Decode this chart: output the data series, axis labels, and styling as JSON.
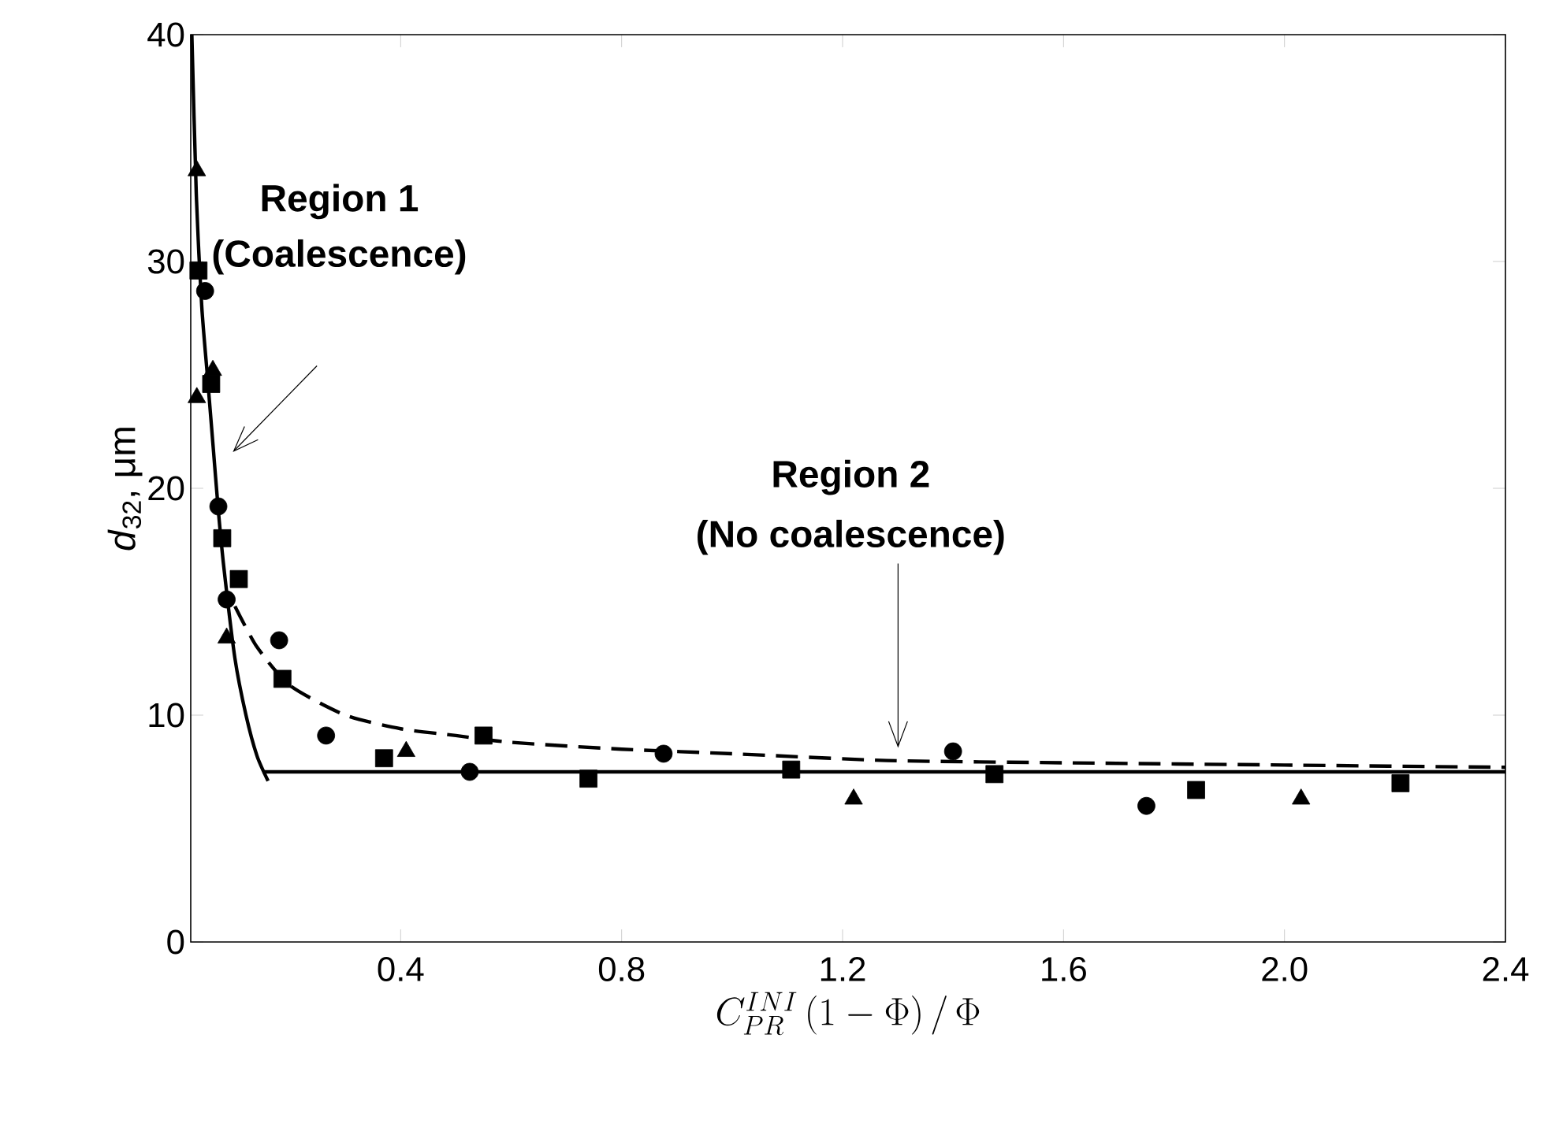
{
  "chart_data": {
    "type": "scatter",
    "xlabel": "C_{PR}^{INI}\\,(1-\\Phi)\\,/\\,\\Phi",
    "ylabel": "*d*$_{32}$, μm",
    "xlim": [
      0.02,
      2.4
    ],
    "ylim": [
      0,
      40
    ],
    "xticks": [
      0.4,
      0.8,
      1.2,
      1.6,
      {
        "value": 2.0,
        "label": "2.0"
      },
      2.4
    ],
    "yticks": [
      0,
      10,
      20,
      30,
      40
    ],
    "series": [
      {
        "marker": "circle",
        "color": "#000000",
        "x": [
          0.046,
          0.07,
          0.085,
          0.18,
          0.265,
          0.525,
          0.876,
          1.4,
          1.75
        ],
        "values": [
          28.7,
          19.2,
          15.1,
          13.3,
          9.1,
          7.5,
          8.3,
          8.4,
          6.0
        ]
      },
      {
        "marker": "square",
        "color": "#000000",
        "x": [
          0.034,
          0.057,
          0.077,
          0.107,
          0.186,
          0.37,
          0.55,
          0.74,
          1.107,
          1.475,
          1.84,
          2.21
        ],
        "values": [
          29.6,
          24.6,
          17.8,
          16.0,
          11.6,
          8.1,
          9.1,
          7.2,
          7.6,
          7.4,
          6.7,
          7.0
        ]
      },
      {
        "marker": "triangle",
        "color": "#000000",
        "x": [
          0.031,
          0.031,
          0.06,
          0.085,
          0.41,
          1.22,
          2.03
        ],
        "values": [
          34.0,
          24.0,
          25.2,
          13.4,
          8.4,
          6.3,
          6.3
        ]
      },
      {
        "type": "line",
        "line_style": "solid",
        "color": "#000000",
        "x": [
          0.022,
          0.03,
          0.04,
          0.05,
          0.06,
          0.07,
          0.08,
          0.1,
          0.12,
          0.14,
          0.16
        ],
        "values": [
          40,
          33,
          28,
          25,
          22,
          19,
          16.5,
          12.5,
          10,
          8.2,
          7.1
        ]
      },
      {
        "type": "line",
        "line_style": "solid",
        "color": "#000000",
        "x": [
          0.15,
          2.4
        ],
        "values": [
          7.5,
          7.5
        ]
      },
      {
        "type": "line",
        "line_style": "dashed",
        "color": "#000000",
        "x": [
          0.1,
          0.14,
          0.2,
          0.3,
          0.4,
          0.5,
          0.6,
          0.8,
          1.0,
          1.28,
          1.6,
          2.0,
          2.4
        ],
        "values": [
          14.8,
          13.0,
          11.3,
          10.0,
          9.4,
          9.1,
          8.8,
          8.5,
          8.3,
          8.0,
          7.9,
          7.8,
          7.7
        ]
      }
    ],
    "annotations": [
      "Region 1",
      "(Coalescence)",
      "Region 2",
      "(No coalescence)"
    ]
  }
}
